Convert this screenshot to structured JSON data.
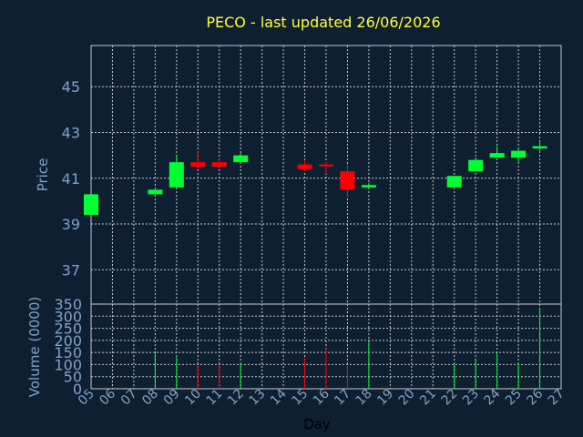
{
  "chart_data": {
    "type": "candlestick",
    "title": "PECO - last updated 26/06/2026",
    "price_panel": {
      "ylabel": "Price",
      "ylim": [
        35.5,
        46.8
      ],
      "yticks": [
        37,
        39,
        41,
        43,
        45
      ]
    },
    "volume_panel": {
      "ylabel": "Volume (0000)",
      "ylim": [
        0,
        350
      ],
      "yticks": [
        0,
        50,
        100,
        150,
        200,
        250,
        300,
        350
      ]
    },
    "xlabel": "Day",
    "x_tick_labels": [
      "05",
      "06",
      "07",
      "08",
      "09",
      "10",
      "11",
      "12",
      "13",
      "14",
      "15",
      "16",
      "17",
      "18",
      "19",
      "20",
      "21",
      "22",
      "23",
      "24",
      "25",
      "26",
      "27"
    ],
    "candles": [
      {
        "day": "05",
        "open": 39.4,
        "high": 40.3,
        "low": 39.4,
        "close": 40.3,
        "volume": 0
      },
      {
        "day": "08",
        "open": 40.3,
        "high": 40.5,
        "low": 40.2,
        "close": 40.5,
        "volume": 150
      },
      {
        "day": "09",
        "open": 40.6,
        "high": 42.0,
        "low": 40.6,
        "close": 41.7,
        "volume": 130
      },
      {
        "day": "10",
        "open": 41.7,
        "high": 42.2,
        "low": 41.4,
        "close": 41.5,
        "volume": 95
      },
      {
        "day": "11",
        "open": 41.7,
        "high": 41.9,
        "low": 41.4,
        "close": 41.5,
        "volume": 100
      },
      {
        "day": "12",
        "open": 41.7,
        "high": 42.1,
        "low": 41.7,
        "close": 42.0,
        "volume": 105
      },
      {
        "day": "15",
        "open": 41.6,
        "high": 41.8,
        "low": 41.3,
        "close": 41.4,
        "volume": 130
      },
      {
        "day": "16",
        "open": 41.6,
        "high": 41.7,
        "low": 41.2,
        "close": 41.55,
        "volume": 165
      },
      {
        "day": "17",
        "open": 41.3,
        "high": 41.6,
        "low": 40.2,
        "close": 40.5,
        "volume": 95
      },
      {
        "day": "18",
        "open": 40.6,
        "high": 40.8,
        "low": 40.6,
        "close": 40.7,
        "volume": 195
      },
      {
        "day": "22",
        "open": 40.6,
        "high": 41.1,
        "low": 40.6,
        "close": 41.1,
        "volume": 100
      },
      {
        "day": "23",
        "open": 41.3,
        "high": 41.9,
        "low": 41.3,
        "close": 41.8,
        "volume": 125
      },
      {
        "day": "24",
        "open": 41.9,
        "high": 42.4,
        "low": 41.9,
        "close": 42.1,
        "volume": 150
      },
      {
        "day": "25",
        "open": 41.9,
        "high": 42.3,
        "low": 41.7,
        "close": 42.2,
        "volume": 105
      },
      {
        "day": "26",
        "open": 42.3,
        "high": 42.6,
        "low": 42.2,
        "close": 42.4,
        "volume": 335
      }
    ],
    "colors": {
      "background": "#0f1f32",
      "plot_area": "#0f1f32",
      "grid": "#c8c8c8",
      "up": "#00ff33",
      "down": "#ff0000",
      "title": "#ffff33",
      "axis_text": "#7fa3c5"
    },
    "grid": true
  }
}
